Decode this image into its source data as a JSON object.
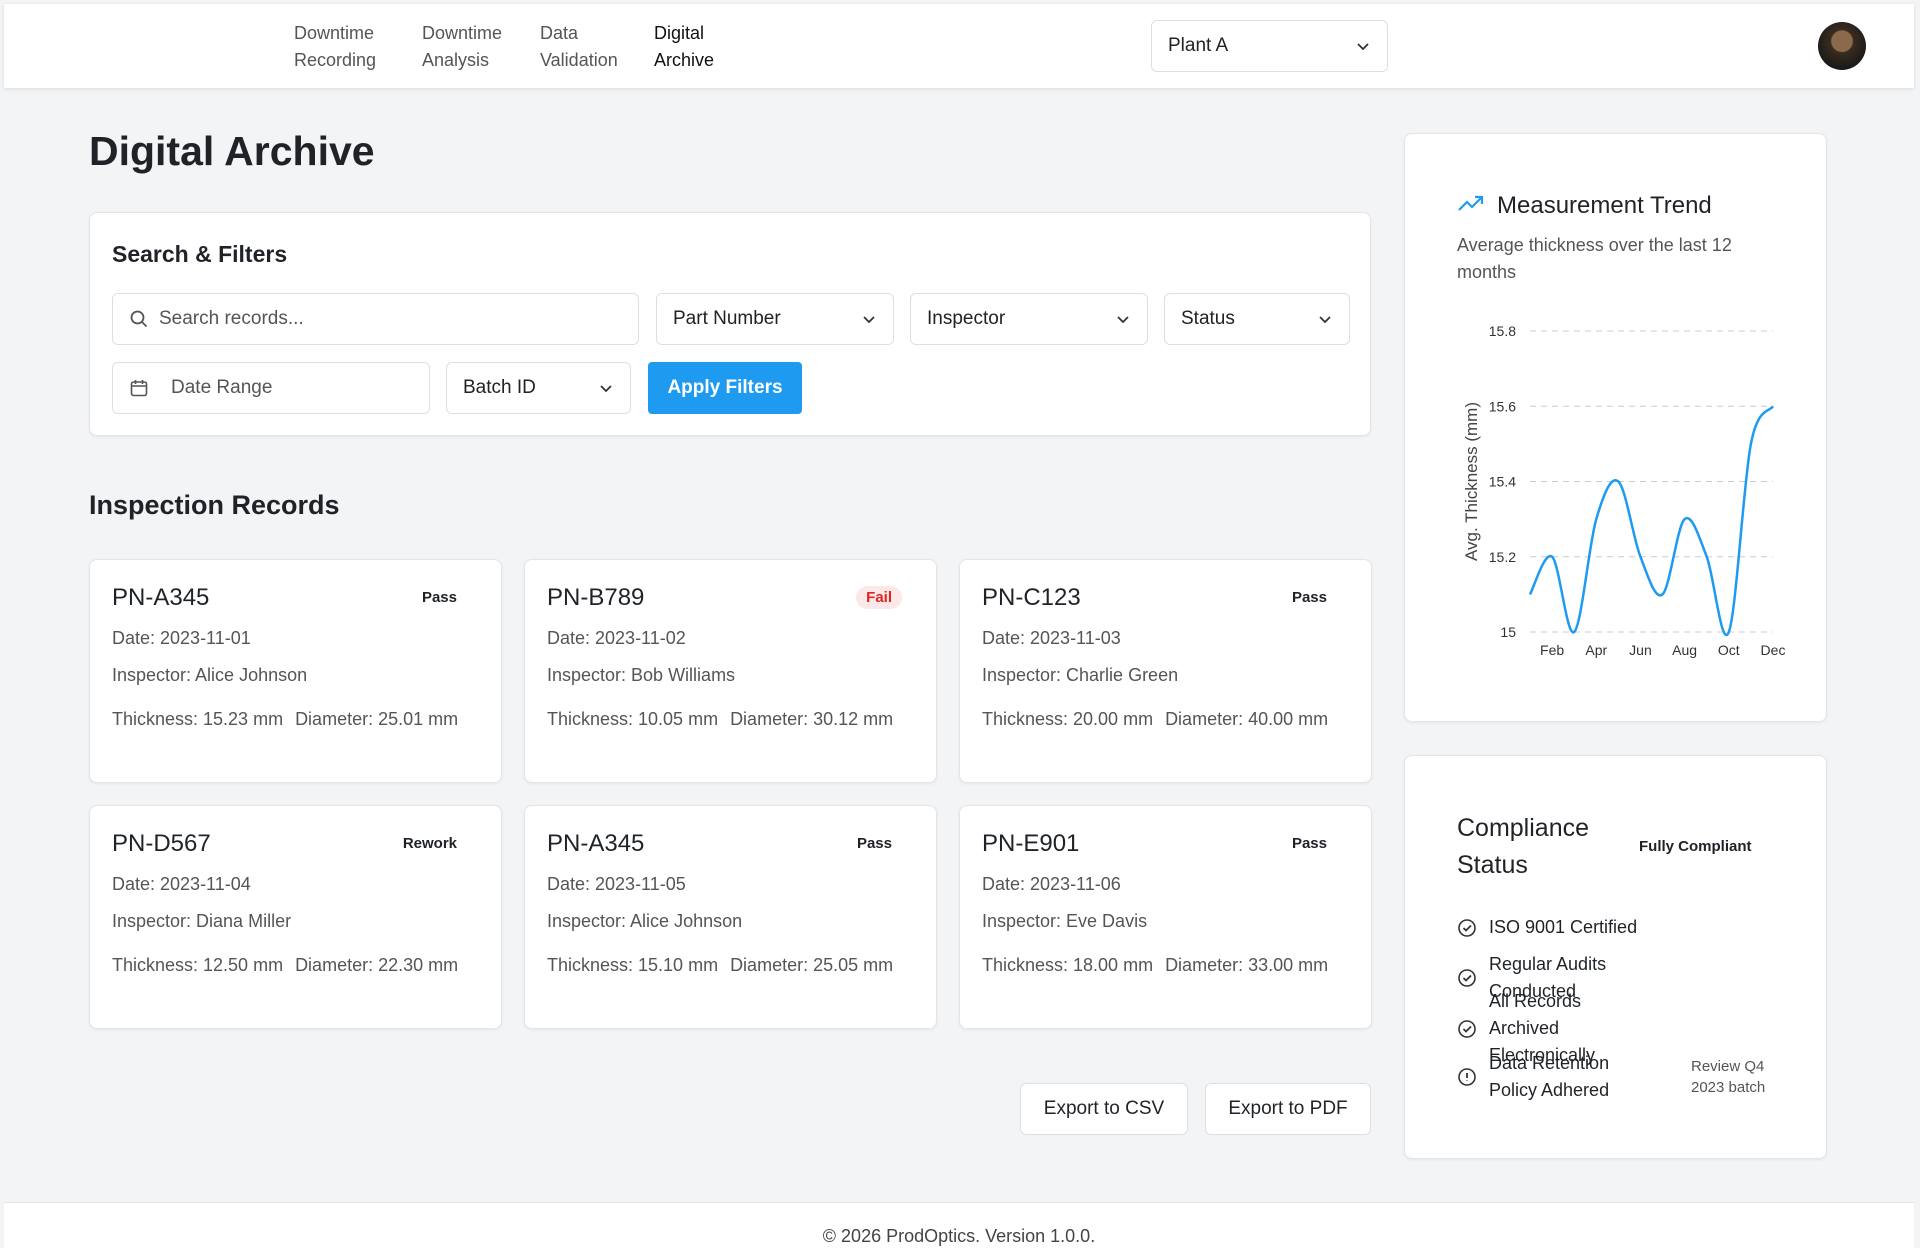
{
  "nav": {
    "links": [
      "Downtime Recording",
      "Downtime Analysis",
      "Data Validation",
      "Digital Archive"
    ],
    "plant": "Plant A"
  },
  "page_title": "Digital Archive",
  "filters": {
    "title": "Search & Filters",
    "search_placeholder": "Search records...",
    "part_number": "Part Number",
    "inspector": "Inspector",
    "status": "Status",
    "date_range": "Date Range",
    "batch_id": "Batch ID",
    "apply": "Apply Filters"
  },
  "records": {
    "title": "Inspection Records",
    "items": [
      {
        "part": "PN-A345",
        "status": "Pass",
        "date": "Date: 2023-11-01",
        "inspector": "Inspector: Alice Johnson",
        "thickness": "Thickness: 15.23 mm",
        "diameter": "Diameter: 25.01 mm"
      },
      {
        "part": "PN-B789",
        "status": "Fail",
        "date": "Date: 2023-11-02",
        "inspector": "Inspector: Bob Williams",
        "thickness": "Thickness: 10.05 mm",
        "diameter": "Diameter: 30.12 mm"
      },
      {
        "part": "PN-C123",
        "status": "Pass",
        "date": "Date: 2023-11-03",
        "inspector": "Inspector: Charlie Green",
        "thickness": "Thickness: 20.00 mm",
        "diameter": "Diameter: 40.00 mm"
      },
      {
        "part": "PN-D567",
        "status": "Rework",
        "date": "Date: 2023-11-04",
        "inspector": "Inspector: Diana Miller",
        "thickness": "Thickness: 12.50 mm",
        "diameter": "Diameter: 22.30 mm"
      },
      {
        "part": "PN-A345",
        "status": "Pass",
        "date": "Date: 2023-11-05",
        "inspector": "Inspector: Alice Johnson",
        "thickness": "Thickness: 15.10 mm",
        "diameter": "Diameter: 25.05 mm"
      },
      {
        "part": "PN-E901",
        "status": "Pass",
        "date": "Date: 2023-11-06",
        "inspector": "Inspector: Eve Davis",
        "thickness": "Thickness: 18.00 mm",
        "diameter": "Diameter: 33.00 mm"
      }
    ]
  },
  "exports": [
    "Export to CSV",
    "Export to PDF"
  ],
  "chart_data": {
    "type": "line",
    "title": "Measurement Trend",
    "subtitle": "Average thickness over the last 12 months",
    "y_label": "Avg. Thickness (mm)",
    "categories": [
      null,
      "Feb",
      null,
      "Apr",
      null,
      "Jun",
      null,
      "Aug",
      null,
      "Oct",
      null,
      "Dec"
    ],
    "series": [
      {
        "color": "#1e9bf0",
        "values": [
          15.1,
          15.2,
          15.0,
          15.3,
          15.4,
          15.2,
          15.1,
          15.3,
          15.2,
          15.0,
          15.5,
          15.6
        ]
      }
    ],
    "ylim": [
      15,
      15.8
    ],
    "yticks": [
      15,
      15.2,
      15.4,
      15.6,
      15.8
    ],
    "grid": true
  },
  "compliance": {
    "title": "Compliance Status",
    "badge": "Fully Compliant",
    "items": [
      {
        "text": "ISO 9001 Certified"
      },
      {
        "text": "Regular Audits Conducted"
      },
      {
        "text": "All Records Archived Electronically"
      },
      {
        "text": "Data Retention Policy Adhered",
        "note": "Review Q4 2023 batch"
      }
    ]
  },
  "footer": "© 2026 ProdOptics. Version 1.0.0."
}
